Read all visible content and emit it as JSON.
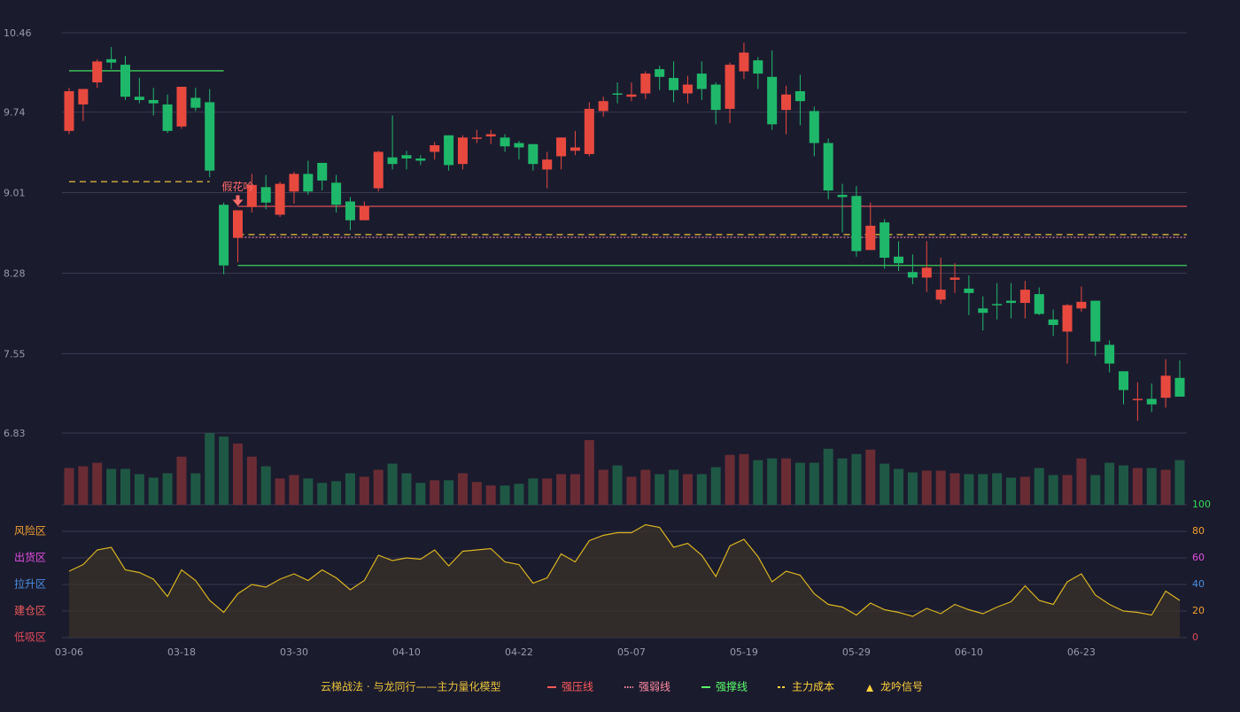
{
  "chart_data": {
    "type": "candlestick",
    "categories": [
      "03-06",
      null,
      null,
      null,
      null,
      null,
      null,
      null,
      "03-18",
      null,
      null,
      null,
      null,
      null,
      null,
      null,
      "03-30",
      null,
      null,
      null,
      null,
      null,
      null,
      null,
      "04-10",
      null,
      null,
      null,
      null,
      null,
      null,
      null,
      "04-22",
      null,
      null,
      null,
      null,
      null,
      null,
      null,
      "05-07",
      null,
      null,
      null,
      null,
      null,
      null,
      null,
      "05-19",
      null,
      null,
      null,
      null,
      null,
      null,
      null,
      "05-29",
      null,
      null,
      null,
      null,
      null,
      null,
      null,
      "06-10",
      null,
      null,
      null,
      null,
      null,
      null,
      null,
      "06-23",
      null,
      null,
      null,
      null,
      null,
      null,
      null
    ],
    "open": [
      9.57,
      9.81,
      10.01,
      10.22,
      10.17,
      9.88,
      9.85,
      9.81,
      9.61,
      9.87,
      9.83,
      8.9,
      8.6,
      8.88,
      9.06,
      8.81,
      9.02,
      9.18,
      9.28,
      9.1,
      8.93,
      8.76,
      9.05,
      9.33,
      9.35,
      9.32,
      9.38,
      9.53,
      9.27,
      9.5,
      9.52,
      9.51,
      9.46,
      9.45,
      9.22,
      9.34,
      9.39,
      9.36,
      9.75,
      9.91,
      9.88,
      9.91,
      10.13,
      10.05,
      9.91,
      10.09,
      9.99,
      9.77,
      10.11,
      10.21,
      10.06,
      9.76,
      9.93,
      9.75,
      9.46,
      8.99,
      8.98,
      8.49,
      8.74,
      8.43,
      8.29,
      8.24,
      8.04,
      8.22,
      8.14,
      7.96,
      8.0,
      8.03,
      8.01,
      8.09,
      7.86,
      7.75,
      7.96,
      8.03,
      7.63,
      7.39,
      7.13,
      7.14,
      7.15,
      7.33
    ],
    "high": [
      9.96,
      9.95,
      10.22,
      10.33,
      10.25,
      10.05,
      9.96,
      9.9,
      9.97,
      9.96,
      9.95,
      8.92,
      8.85,
      9.18,
      9.17,
      9.11,
      9.2,
      9.3,
      9.28,
      9.17,
      8.97,
      8.93,
      9.39,
      9.71,
      9.39,
      9.35,
      9.47,
      9.53,
      9.53,
      9.58,
      9.58,
      9.54,
      9.48,
      9.45,
      9.38,
      9.51,
      9.57,
      9.83,
      9.88,
      10.01,
      10.01,
      10.11,
      10.16,
      10.2,
      10.07,
      10.2,
      10.01,
      10.19,
      10.37,
      10.24,
      10.3,
      9.98,
      10.08,
      9.79,
      9.5,
      9.09,
      9.07,
      8.92,
      8.77,
      8.57,
      8.45,
      8.57,
      8.42,
      8.37,
      8.26,
      8.07,
      8.19,
      8.19,
      8.21,
      8.15,
      7.95,
      8.0,
      8.16,
      8.03,
      7.67,
      7.39,
      7.29,
      7.28,
      7.5,
      7.49
    ],
    "low": [
      9.54,
      9.66,
      9.96,
      10.13,
      9.85,
      9.82,
      9.71,
      9.55,
      9.59,
      9.75,
      9.15,
      8.27,
      8.38,
      8.83,
      8.86,
      8.79,
      8.91,
      8.99,
      9.03,
      8.83,
      8.67,
      8.76,
      9.02,
      9.22,
      9.22,
      9.26,
      9.31,
      9.21,
      9.22,
      9.46,
      9.45,
      9.38,
      9.31,
      9.21,
      9.05,
      9.22,
      9.35,
      9.34,
      9.7,
      9.82,
      9.84,
      9.86,
      9.94,
      9.83,
      9.82,
      9.85,
      9.63,
      9.64,
      10.04,
      9.95,
      9.58,
      9.54,
      9.62,
      9.34,
      8.95,
      8.65,
      8.43,
      8.49,
      8.32,
      8.3,
      8.18,
      8.11,
      8.0,
      8.1,
      7.9,
      7.76,
      7.86,
      7.87,
      7.87,
      7.9,
      7.71,
      7.46,
      7.93,
      7.53,
      7.38,
      7.09,
      6.94,
      7.02,
      7.06,
      7.16
    ],
    "close": [
      9.93,
      9.95,
      10.2,
      10.19,
      9.88,
      9.85,
      9.82,
      9.57,
      9.97,
      9.78,
      9.21,
      8.35,
      8.85,
      9.08,
      8.92,
      9.09,
      9.18,
      9.02,
      9.12,
      8.9,
      8.76,
      8.89,
      9.38,
      9.27,
      9.32,
      9.3,
      9.44,
      9.26,
      9.51,
      9.51,
      9.54,
      9.43,
      9.42,
      9.27,
      9.31,
      9.51,
      9.42,
      9.77,
      9.84,
      9.9,
      9.9,
      10.09,
      10.06,
      9.94,
      9.99,
      9.95,
      9.76,
      10.17,
      10.28,
      10.09,
      9.63,
      9.9,
      9.84,
      9.46,
      9.03,
      8.97,
      8.48,
      8.71,
      8.42,
      8.37,
      8.24,
      8.33,
      8.13,
      8.24,
      8.1,
      7.92,
      7.99,
      8.01,
      8.13,
      7.91,
      7.81,
      7.99,
      8.02,
      7.66,
      7.46,
      7.22,
      7.14,
      7.09,
      7.35,
      7.16
    ],
    "volume": [
      42,
      44,
      48,
      41,
      41,
      35,
      31,
      36,
      55,
      36,
      82,
      78,
      70,
      55,
      44,
      30,
      34,
      30,
      25,
      27,
      36,
      32,
      40,
      47,
      36,
      25,
      28,
      28,
      36,
      26,
      22,
      22,
      24,
      30,
      30,
      35,
      35,
      74,
      40,
      45,
      32,
      40,
      35,
      40,
      35,
      35,
      43,
      57,
      58,
      51,
      53,
      53,
      48,
      48,
      64,
      53,
      58,
      63,
      47,
      41,
      37,
      39,
      39,
      36,
      35,
      35,
      36,
      31,
      32,
      42,
      34,
      34,
      53,
      34,
      48,
      45,
      42,
      42,
      40,
      51
    ],
    "oscillator": [
      50,
      55,
      66,
      68,
      51,
      49,
      44,
      31,
      51,
      43,
      28,
      19,
      33,
      40,
      38,
      44,
      48,
      43,
      51,
      45,
      36,
      43,
      62,
      58,
      60,
      59,
      66,
      54,
      65,
      66,
      67,
      57,
      55,
      41,
      45,
      63,
      57,
      73,
      77,
      79,
      79,
      85,
      83,
      68,
      71,
      62,
      46,
      69,
      74,
      61,
      42,
      50,
      47,
      33,
      25,
      23,
      17,
      26,
      21,
      19,
      16,
      22,
      18,
      25,
      21,
      18,
      23,
      27,
      39,
      28,
      25,
      42,
      48,
      32,
      25,
      20,
      19,
      17,
      35,
      28
    ],
    "ylim": [
      6.83,
      10.46
    ],
    "yticks": [
      6.83,
      7.55,
      8.28,
      9.01,
      9.74,
      10.46
    ],
    "y2lim": [
      0,
      100
    ],
    "y2ticks": [
      0,
      20,
      40,
      60,
      80,
      100
    ],
    "y2tick_colors": [
      "#e04a5a",
      "#f0a030",
      "#4a8fe0",
      "#e050e0",
      "#f0a030",
      "#33dd55"
    ],
    "zones": [
      {
        "label": "风险区",
        "value": 80,
        "color": "#f0a030"
      },
      {
        "label": "出货区",
        "value": 60,
        "color": "#e050e0"
      },
      {
        "label": "拉升区",
        "value": 40,
        "color": "#4a8fe0"
      },
      {
        "label": "建仓区",
        "value": 20,
        "color": "#ee5a5a"
      },
      {
        "label": "低吸区",
        "value": 0,
        "color": "#e04a5a"
      }
    ],
    "up_color": "#e8493f",
    "down_color": "#1fb86a",
    "levels": [
      {
        "value": 10.115,
        "start": 0,
        "end": 11,
        "color": "#3ecf5a",
        "style": "solid"
      },
      {
        "value": 9.11,
        "start": 0,
        "end": 10,
        "color": "#e8c23a",
        "style": "dashed"
      },
      {
        "value": 8.886,
        "start": 12,
        "end": 79,
        "color": "#d9505a",
        "style": "solid"
      },
      {
        "value": 8.63,
        "start": 12,
        "end": 79,
        "color": "#e8c23a",
        "style": "dashed"
      },
      {
        "value": 8.605,
        "start": 12,
        "end": 79,
        "color": "#e080a0",
        "style": "dotted"
      },
      {
        "value": 8.35,
        "start": 12,
        "end": 79,
        "color": "#3ecf5a",
        "style": "solid"
      }
    ],
    "signal": {
      "label": "假花吟",
      "index": 12
    },
    "legend_title": "云梯战法 · 与龙同行——主力量化模型",
    "legend": [
      {
        "name": "强压线",
        "color": "#ff5a5a",
        "style": "solid"
      },
      {
        "name": "强弱线",
        "color": "#ff8aa0",
        "style": "dotted"
      },
      {
        "name": "强撑线",
        "color": "#5aff6a",
        "style": "solid"
      },
      {
        "name": "主力成本",
        "color": "#ffd23a",
        "style": "dashed"
      },
      {
        "name": "龙吟信号",
        "color": "#ffd23a",
        "style": "triangle"
      }
    ]
  }
}
